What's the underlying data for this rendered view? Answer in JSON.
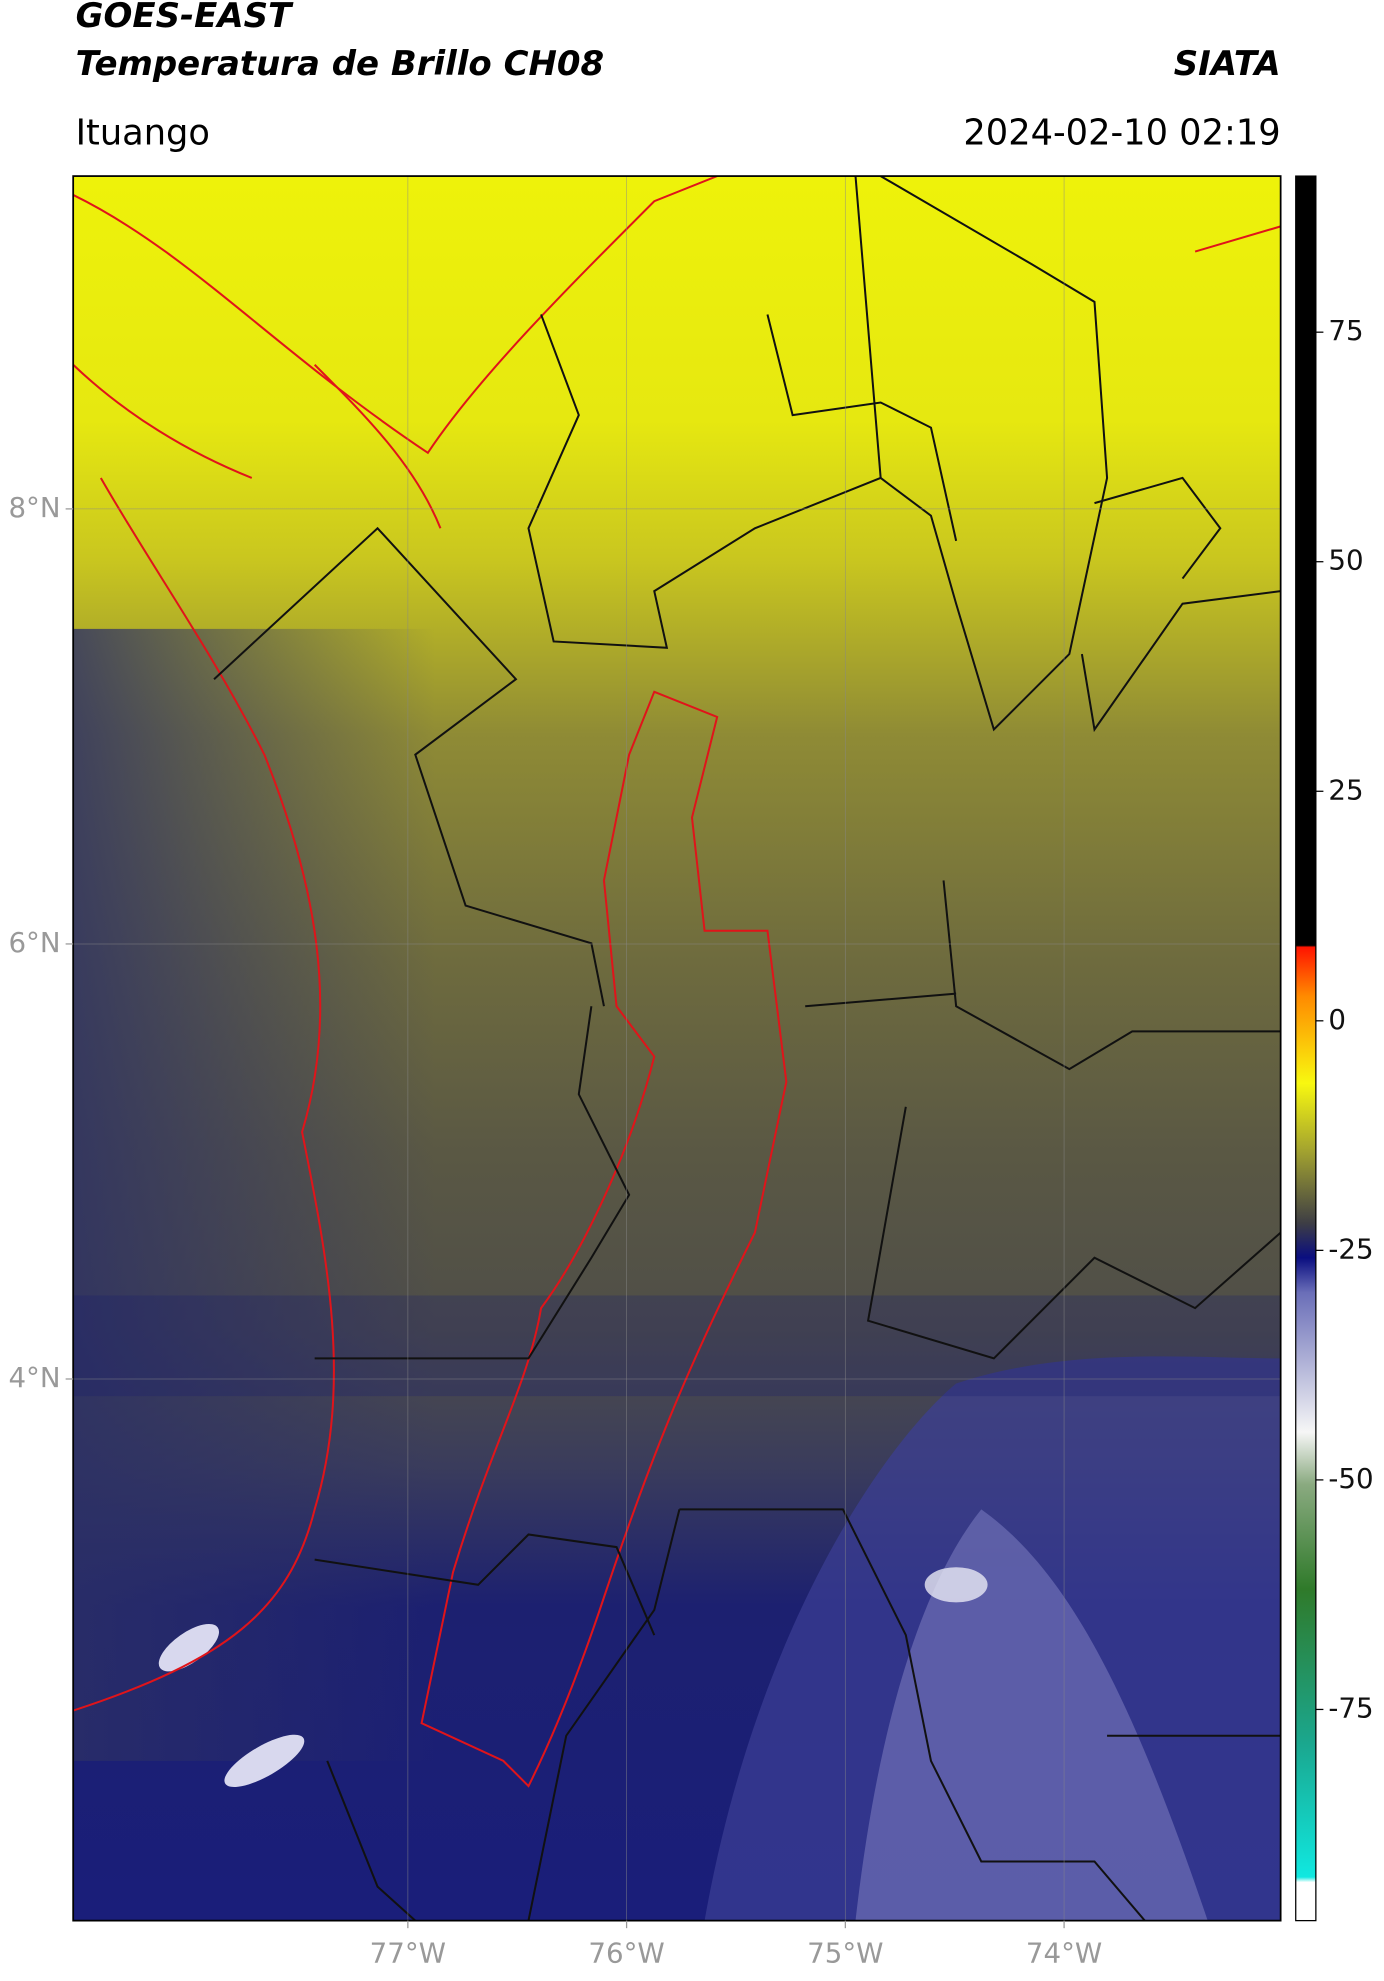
{
  "header": {
    "title": "GOES-EAST",
    "subtitle": "Temperatura de Brillo CH08",
    "source": "SIATA",
    "location": "Ituango",
    "datetime": "2024-02-10 02:19"
  },
  "map": {
    "xlim": [
      -78.53,
      -73.01
    ],
    "ylim": [
      1.51,
      9.53
    ],
    "xticks": [
      {
        "value": -77,
        "label": "77°W"
      },
      {
        "value": -76,
        "label": "76°W"
      },
      {
        "value": -75,
        "label": "75°W"
      },
      {
        "value": -74,
        "label": "74°W"
      }
    ],
    "yticks": [
      {
        "value": 8,
        "label": "8°N"
      },
      {
        "value": 6,
        "label": "6°N"
      },
      {
        "value": 4,
        "label": "4°N"
      }
    ]
  },
  "colorbar": {
    "lim": [
      -98,
      92
    ],
    "ticks": [
      75,
      50,
      25,
      0,
      -25,
      -50,
      -75
    ]
  }
}
